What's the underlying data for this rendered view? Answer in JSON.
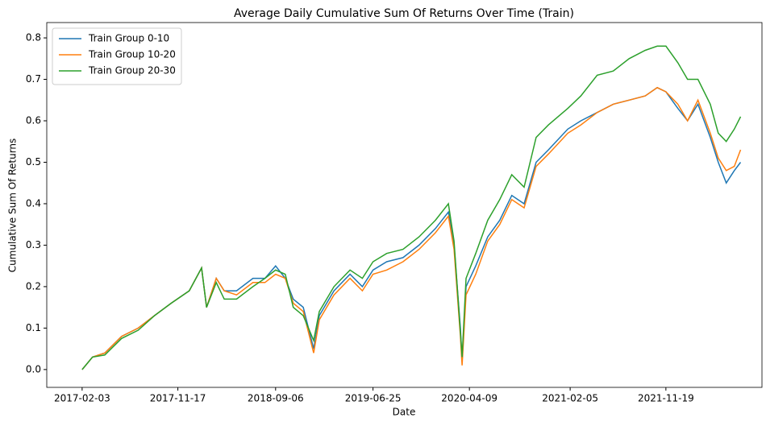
{
  "chart_data": {
    "type": "line",
    "title": "Average Daily Cumulative Sum Of Returns Over Time (Train)",
    "x_label": "Date",
    "y_label": "Cumulative Sum Of Returns",
    "x": [
      "2017-02-03",
      "2017-03-06",
      "2017-04-12",
      "2017-06-01",
      "2017-07-21",
      "2017-09-08",
      "2017-10-28",
      "2017-12-21",
      "2018-01-27",
      "2018-02-11",
      "2018-03-12",
      "2018-04-05",
      "2018-05-12",
      "2018-06-30",
      "2018-08-05",
      "2018-09-06",
      "2018-10-05",
      "2018-10-29",
      "2018-11-28",
      "2018-12-29",
      "2019-01-15",
      "2019-02-28",
      "2019-04-17",
      "2019-05-24",
      "2019-06-25",
      "2019-08-05",
      "2019-09-23",
      "2019-11-10",
      "2019-12-29",
      "2020-02-06",
      "2020-02-23",
      "2020-03-13",
      "2020-03-18",
      "2020-03-30",
      "2020-04-28",
      "2020-06-03",
      "2020-07-09",
      "2020-08-14",
      "2020-09-20",
      "2020-10-26",
      "2020-12-02",
      "2021-01-29",
      "2021-03-09",
      "2021-04-27",
      "2021-06-14",
      "2021-08-01",
      "2021-09-18",
      "2021-10-24",
      "2021-11-19",
      "2021-12-25",
      "2022-01-23",
      "2022-02-23",
      "2022-04-01",
      "2022-04-25",
      "2022-05-19",
      "2022-06-12",
      "2022-07-01"
    ],
    "series": [
      {
        "name": "Train Group 0-10",
        "color": "#1f77b4",
        "values": [
          0,
          0.03,
          0.04,
          0.08,
          0.1,
          0.13,
          0.16,
          0.19,
          0.245,
          0.15,
          0.22,
          0.19,
          0.19,
          0.22,
          0.22,
          0.25,
          0.22,
          0.17,
          0.15,
          0.05,
          0.13,
          0.19,
          0.23,
          0.2,
          0.24,
          0.26,
          0.27,
          0.3,
          0.34,
          0.38,
          0.3,
          0.1,
          0.02,
          0.2,
          0.25,
          0.32,
          0.36,
          0.42,
          0.4,
          0.5,
          0.53,
          0.58,
          0.6,
          0.62,
          0.64,
          0.65,
          0.66,
          0.68,
          0.67,
          0.63,
          0.6,
          0.64,
          0.56,
          0.5,
          0.45,
          0.48,
          0.5
        ]
      },
      {
        "name": "Train Group 10-20",
        "color": "#ff7f0e",
        "values": [
          0,
          0.03,
          0.04,
          0.08,
          0.1,
          0.13,
          0.16,
          0.19,
          0.245,
          0.15,
          0.22,
          0.19,
          0.18,
          0.21,
          0.21,
          0.23,
          0.22,
          0.16,
          0.14,
          0.04,
          0.12,
          0.18,
          0.22,
          0.19,
          0.23,
          0.24,
          0.26,
          0.29,
          0.33,
          0.37,
          0.29,
          0.08,
          0.01,
          0.18,
          0.23,
          0.31,
          0.35,
          0.41,
          0.39,
          0.49,
          0.52,
          0.57,
          0.59,
          0.62,
          0.64,
          0.65,
          0.66,
          0.68,
          0.67,
          0.64,
          0.6,
          0.65,
          0.57,
          0.51,
          0.48,
          0.49,
          0.53
        ]
      },
      {
        "name": "Train Group 20-30",
        "color": "#2ca02c",
        "values": [
          0,
          0.03,
          0.035,
          0.075,
          0.095,
          0.13,
          0.16,
          0.19,
          0.245,
          0.15,
          0.21,
          0.17,
          0.17,
          0.2,
          0.22,
          0.24,
          0.23,
          0.15,
          0.13,
          0.07,
          0.14,
          0.2,
          0.24,
          0.22,
          0.26,
          0.28,
          0.29,
          0.32,
          0.36,
          0.4,
          0.31,
          0.09,
          0.03,
          0.22,
          0.28,
          0.36,
          0.41,
          0.47,
          0.44,
          0.56,
          0.59,
          0.63,
          0.66,
          0.71,
          0.72,
          0.75,
          0.77,
          0.78,
          0.78,
          0.74,
          0.7,
          0.7,
          0.64,
          0.57,
          0.55,
          0.58,
          0.61
        ]
      }
    ],
    "xlim": [
      "2016-10-20",
      "2022-09-03"
    ],
    "xticks": [
      "2017-02-03",
      "2017-11-17",
      "2018-09-06",
      "2019-06-25",
      "2020-04-09",
      "2021-02-05",
      "2021-11-19"
    ],
    "ylim": [
      -0.043,
      0.837
    ],
    "yticks": [
      {
        "value": 0,
        "label": "0.0"
      },
      0.1,
      0.2,
      0.3,
      0.4,
      0.5,
      0.6,
      0.7,
      0.8
    ],
    "legend": "upper left",
    "grid": false
  }
}
